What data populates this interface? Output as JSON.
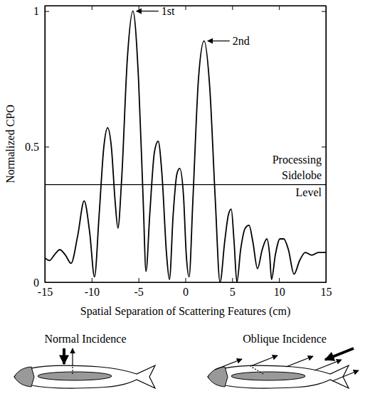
{
  "chart_data": {
    "type": "line",
    "x_label": "Spatial Separation of Scattering Features (cm)",
    "y_label": "Normalized CPO",
    "x": [
      -15,
      -14.5,
      -14,
      -13.4,
      -12.8,
      -12.2,
      -11.5,
      -10.8,
      -10.2,
      -9.7,
      -9.2,
      -8.7,
      -8.3,
      -7.9,
      -7.5,
      -7.2,
      -6.8,
      -6.2,
      -5.6,
      -5.0,
      -4.5,
      -4.2,
      -3.8,
      -3.3,
      -2.9,
      -2.5,
      -2.0,
      -1.7,
      -1.3,
      -0.9,
      -0.6,
      -0.2,
      0.1,
      0.4,
      0.8,
      1.4,
      2.0,
      2.6,
      3.2,
      3.7,
      4.2,
      4.6,
      4.9,
      5.2,
      5.5,
      5.9,
      6.4,
      6.8,
      7.2,
      7.7,
      8.2,
      8.7,
      9.0,
      9.2,
      9.6,
      10.1,
      10.5,
      11.0,
      11.6,
      12.2,
      12.8,
      13.5,
      14.2,
      15
    ],
    "values": [
      0.09,
      0.08,
      0.1,
      0.12,
      0.1,
      0.07,
      0.17,
      0.3,
      0.18,
      0.02,
      0.25,
      0.5,
      0.57,
      0.5,
      0.3,
      0.2,
      0.38,
      0.82,
      1.0,
      0.75,
      0.3,
      0.04,
      0.25,
      0.48,
      0.52,
      0.4,
      0.1,
      0.01,
      0.25,
      0.4,
      0.42,
      0.32,
      0.1,
      0.02,
      0.3,
      0.75,
      0.89,
      0.72,
      0.3,
      0.0,
      0.15,
      0.25,
      0.27,
      0.15,
      0.0,
      0.12,
      0.2,
      0.21,
      0.15,
      0.05,
      0.12,
      0.16,
      0.1,
      0.01,
      0.1,
      0.16,
      0.16,
      0.12,
      0.03,
      0.08,
      0.11,
      0.1,
      0.11,
      0.11
    ],
    "color": "#000000",
    "xlim": [
      -15,
      15
    ],
    "xticks": [
      -15,
      -10,
      -5,
      0,
      5,
      10,
      15
    ],
    "ylim": [
      0,
      1.02
    ],
    "yticks": [
      0,
      0.5,
      1
    ],
    "sidelobe_level": 0.36,
    "sidelobe_label": "Processing Sidelobe Level",
    "annotations": [
      {
        "text": "1st",
        "x": -5.6,
        "y": 1.0
      },
      {
        "text": "2nd",
        "x": 2.0,
        "y": 0.89
      }
    ],
    "captions": [
      "Normal Incidence",
      "Oblique Incidence"
    ]
  }
}
